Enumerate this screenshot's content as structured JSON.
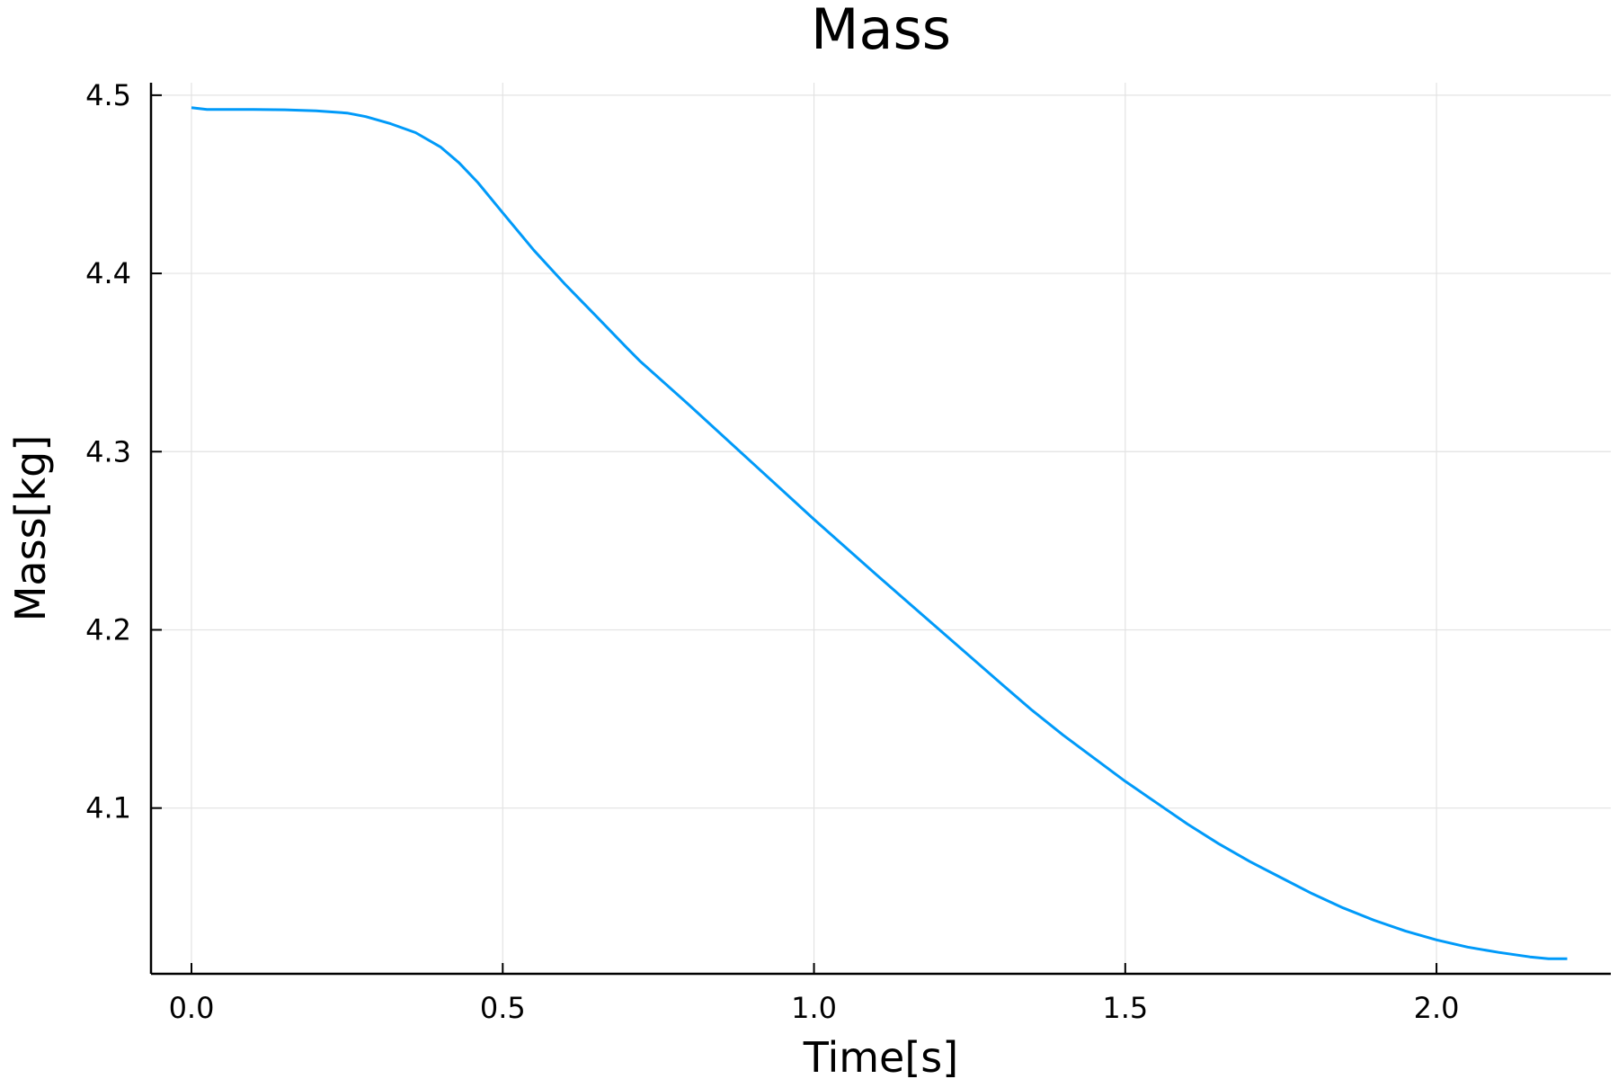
{
  "chart_data": {
    "type": "line",
    "title": "Mass",
    "xlabel": "Time[s]",
    "ylabel": "Mass[kg]",
    "xlim": [
      -0.065,
      2.28
    ],
    "ylim": [
      4.007,
      4.507
    ],
    "xticks": [
      0.0,
      0.5,
      1.0,
      1.5,
      2.0
    ],
    "xtick_labels": [
      "0.0",
      "0.5",
      "1.0",
      "1.5",
      "2.0"
    ],
    "yticks": [
      4.1,
      4.2,
      4.3,
      4.4,
      4.5
    ],
    "ytick_labels": [
      "4.1",
      "4.2",
      "4.3",
      "4.4",
      "4.5"
    ],
    "grid": true,
    "legend": "none",
    "series": [
      {
        "color": "#009af9",
        "x": [
          0.0,
          0.025,
          0.05,
          0.1,
          0.15,
          0.2,
          0.25,
          0.28,
          0.32,
          0.36,
          0.4,
          0.43,
          0.46,
          0.5,
          0.55,
          0.6,
          0.65,
          0.7,
          0.72,
          0.8,
          0.9,
          1.0,
          1.1,
          1.2,
          1.3,
          1.35,
          1.4,
          1.45,
          1.5,
          1.55,
          1.6,
          1.65,
          1.7,
          1.75,
          1.8,
          1.85,
          1.9,
          1.95,
          2.0,
          2.05,
          2.1,
          2.15,
          2.18,
          2.21
        ],
        "y": [
          4.493,
          4.492,
          4.492,
          4.492,
          4.4918,
          4.4912,
          4.49,
          4.488,
          4.484,
          4.479,
          4.471,
          4.462,
          4.451,
          4.434,
          4.413,
          4.394,
          4.376,
          4.358,
          4.351,
          4.326,
          4.294,
          4.262,
          4.231,
          4.2005,
          4.17,
          4.155,
          4.141,
          4.128,
          4.115,
          4.103,
          4.091,
          4.08,
          4.07,
          4.061,
          4.052,
          4.044,
          4.037,
          4.031,
          4.026,
          4.022,
          4.019,
          4.0165,
          4.0155,
          4.0155
        ]
      }
    ]
  }
}
